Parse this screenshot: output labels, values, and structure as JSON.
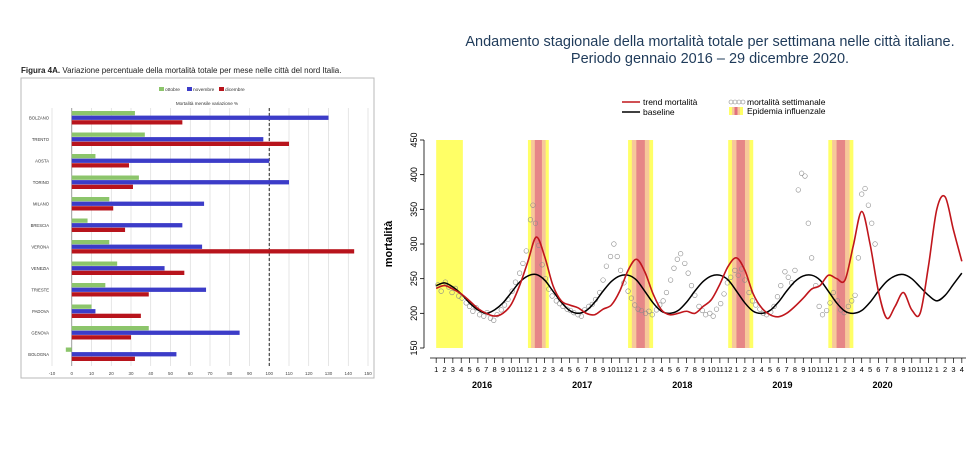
{
  "left_figure": {
    "caption_label": "Figura 4A.",
    "caption_text": "Variazione percentuale della mortalità totale per mese nelle città del nord Italia."
  },
  "right_figure": {
    "title_line1": "Andamento stagionale della mortalità totale per settimana nelle città italiane.",
    "title_line2": "Periodo gennaio 2016 – 29 dicembre 2020."
  },
  "chart_data": [
    {
      "type": "bar",
      "orientation": "horizontal",
      "title": "Mortalità mensile variazione %",
      "categories": [
        "BOLZANO",
        "TRENTO",
        "AOSTA",
        "TORINO",
        "MILANO",
        "BRESCIA",
        "VERONA",
        "VENEZIA",
        "TRIESTE",
        "PADOVA",
        "GENOVA",
        "BOLOGNA"
      ],
      "series": [
        {
          "name": "ottobre",
          "color": "#8cc56b",
          "values": [
            32,
            37,
            12,
            34,
            19,
            8,
            19,
            23,
            17,
            10,
            39,
            -3
          ]
        },
        {
          "name": "novembre",
          "color": "#3c3cc8",
          "values": [
            130,
            97,
            100,
            110,
            67,
            56,
            66,
            47,
            68,
            12,
            85,
            53
          ]
        },
        {
          "name": "dicembre",
          "color": "#b8141c",
          "values": [
            56,
            110,
            29,
            31,
            21,
            27,
            143,
            57,
            39,
            35,
            30,
            32
          ]
        }
      ],
      "xlim": [
        -10,
        150
      ],
      "xticks": [
        -10,
        0,
        10,
        20,
        30,
        40,
        50,
        60,
        70,
        80,
        90,
        100,
        110,
        120,
        130,
        140,
        150
      ],
      "reference_line": 100,
      "legend_position": "top"
    },
    {
      "type": "line",
      "ylabel": "mortalità",
      "ylim": [
        150,
        450
      ],
      "yticks": [
        150,
        200,
        250,
        300,
        350,
        400,
        450
      ],
      "years": [
        "2016",
        "2017",
        "2018",
        "2019",
        "2020"
      ],
      "month_ticks": [
        "1",
        "2",
        "3",
        "4",
        "5",
        "6",
        "7",
        "8",
        "9",
        "10",
        "11",
        "12"
      ],
      "legend": {
        "trend": "trend mortalità",
        "baseline": "baseline",
        "weekly": "mortalità settimanale",
        "epidemic": "Epidemia influenzale"
      },
      "colors": {
        "trend": "#c0161c",
        "baseline": "#000000",
        "weekly": "#8a8a8a",
        "epidemic_outer": "#ffff66",
        "epidemic_mid": "#f7c89a",
        "epidemic_inner": "#e07080"
      },
      "epidemic_periods": [
        {
          "year": "2016",
          "start": 1,
          "end": 4.2
        },
        {
          "year": "2017",
          "start": 12.0,
          "end": 14.5
        },
        {
          "year": "2018",
          "start": 24.0,
          "end": 27.0
        },
        {
          "year": "2019",
          "start": 36.0,
          "end": 39.0
        },
        {
          "year": "2020",
          "start": 48.0,
          "end": 51.0
        }
      ],
      "trend": [
        [
          1,
          236
        ],
        [
          2,
          240
        ],
        [
          3,
          235
        ],
        [
          4,
          228
        ],
        [
          5,
          218
        ],
        [
          6,
          207
        ],
        [
          7,
          200
        ],
        [
          8,
          196
        ],
        [
          9,
          200
        ],
        [
          10,
          213
        ],
        [
          11,
          240
        ],
        [
          12,
          275
        ],
        [
          13,
          310
        ],
        [
          14,
          282
        ],
        [
          15,
          240
        ],
        [
          16,
          218
        ],
        [
          17,
          212
        ],
        [
          18,
          208
        ],
        [
          19,
          200
        ],
        [
          20,
          198
        ],
        [
          21,
          206
        ],
        [
          22,
          212
        ],
        [
          23,
          232
        ],
        [
          24,
          262
        ],
        [
          25,
          278
        ],
        [
          26,
          260
        ],
        [
          27,
          228
        ],
        [
          28,
          205
        ],
        [
          29,
          198
        ],
        [
          30,
          200
        ],
        [
          31,
          203
        ],
        [
          32,
          200
        ],
        [
          33,
          210
        ],
        [
          34,
          220
        ],
        [
          35,
          242
        ],
        [
          36,
          268
        ],
        [
          37,
          280
        ],
        [
          38,
          262
        ],
        [
          39,
          228
        ],
        [
          40,
          208
        ],
        [
          41,
          198
        ],
        [
          42,
          195
        ],
        [
          43,
          200
        ],
        [
          44,
          210
        ],
        [
          45,
          222
        ],
        [
          46,
          235
        ],
        [
          47,
          240
        ],
        [
          48,
          255
        ],
        [
          49,
          250
        ],
        [
          50,
          248
        ],
        [
          51,
          298
        ],
        [
          52,
          347
        ],
        [
          53,
          300
        ],
        [
          54,
          232
        ],
        [
          55,
          193
        ],
        [
          56,
          210
        ],
        [
          57,
          230
        ],
        [
          58,
          205
        ],
        [
          59,
          200
        ],
        [
          60,
          268
        ],
        [
          61,
          350
        ],
        [
          62,
          368
        ],
        [
          63,
          320
        ],
        [
          64,
          275
        ]
      ],
      "baseline": [
        [
          1,
          240
        ],
        [
          2,
          244
        ],
        [
          3,
          238
        ],
        [
          4,
          228
        ],
        [
          5,
          215
        ],
        [
          6,
          205
        ],
        [
          7,
          200
        ],
        [
          8,
          205
        ],
        [
          9,
          215
        ],
        [
          10,
          230
        ],
        [
          11,
          245
        ],
        [
          12,
          254
        ],
        [
          13,
          256
        ],
        [
          14,
          248
        ],
        [
          15,
          232
        ],
        [
          16,
          216
        ],
        [
          17,
          204
        ],
        [
          18,
          200
        ],
        [
          19,
          204
        ],
        [
          20,
          216
        ],
        [
          21,
          232
        ],
        [
          22,
          246
        ],
        [
          23,
          254
        ],
        [
          24,
          255
        ],
        [
          25,
          248
        ],
        [
          26,
          232
        ],
        [
          27,
          215
        ],
        [
          28,
          203
        ],
        [
          29,
          200
        ],
        [
          30,
          204
        ],
        [
          31,
          216
        ],
        [
          32,
          232
        ],
        [
          33,
          246
        ],
        [
          34,
          254
        ],
        [
          35,
          255
        ],
        [
          36,
          248
        ],
        [
          37,
          232
        ],
        [
          38,
          215
        ],
        [
          39,
          203
        ],
        [
          40,
          200
        ],
        [
          41,
          204
        ],
        [
          42,
          216
        ],
        [
          43,
          232
        ],
        [
          44,
          246
        ],
        [
          45,
          254
        ],
        [
          46,
          255
        ],
        [
          47,
          248
        ],
        [
          48,
          232
        ],
        [
          49,
          215
        ],
        [
          50,
          203
        ],
        [
          51,
          200
        ],
        [
          52,
          204
        ],
        [
          53,
          216
        ],
        [
          54,
          232
        ],
        [
          55,
          246
        ],
        [
          56,
          254
        ],
        [
          57,
          256
        ],
        [
          58,
          250
        ],
        [
          59,
          238
        ],
        [
          60,
          226
        ],
        [
          61,
          218
        ],
        [
          62,
          226
        ],
        [
          63,
          242
        ],
        [
          64,
          258
        ]
      ],
      "weekly_points": [
        [
          1.2,
          241
        ],
        [
          1.6,
          232
        ],
        [
          2.1,
          245
        ],
        [
          2.5,
          238
        ],
        [
          2.9,
          230
        ],
        [
          3.3,
          236
        ],
        [
          3.7,
          225
        ],
        [
          4.1,
          222
        ],
        [
          4.6,
          215
        ],
        [
          5.0,
          210
        ],
        [
          5.4,
          203
        ],
        [
          5.8,
          208
        ],
        [
          6.2,
          198
        ],
        [
          6.7,
          196
        ],
        [
          7.1,
          201
        ],
        [
          7.5,
          193
        ],
        [
          7.9,
          190
        ],
        [
          8.3,
          198
        ],
        [
          8.8,
          205
        ],
        [
          9.2,
          212
        ],
        [
          9.6,
          220
        ],
        [
          10.1,
          232
        ],
        [
          10.5,
          245
        ],
        [
          11.0,
          258
        ],
        [
          11.4,
          272
        ],
        [
          11.8,
          290
        ],
        [
          12.3,
          335
        ],
        [
          12.6,
          356
        ],
        [
          12.9,
          330
        ],
        [
          13.3,
          298
        ],
        [
          13.7,
          270
        ],
        [
          14.1,
          250
        ],
        [
          14.5,
          235
        ],
        [
          14.9,
          225
        ],
        [
          15.4,
          218
        ],
        [
          15.8,
          214
        ],
        [
          16.2,
          210
        ],
        [
          16.7,
          206
        ],
        [
          17.1,
          204
        ],
        [
          17.5,
          201
        ],
        [
          18.0,
          198
        ],
        [
          18.4,
          196
        ],
        [
          18.8,
          205
        ],
        [
          19.3,
          210
        ],
        [
          19.7,
          213
        ],
        [
          20.1,
          220
        ],
        [
          20.6,
          230
        ],
        [
          21.0,
          248
        ],
        [
          21.4,
          268
        ],
        [
          21.9,
          282
        ],
        [
          22.3,
          300
        ],
        [
          22.7,
          282
        ],
        [
          23.1,
          262
        ],
        [
          23.5,
          244
        ],
        [
          24.0,
          232
        ],
        [
          24.4,
          222
        ],
        [
          24.8,
          212
        ],
        [
          25.2,
          206
        ],
        [
          25.6,
          204
        ],
        [
          26.1,
          200
        ],
        [
          26.5,
          203
        ],
        [
          26.9,
          198
        ],
        [
          27.4,
          205
        ],
        [
          27.8,
          212
        ],
        [
          28.2,
          218
        ],
        [
          28.6,
          230
        ],
        [
          29.1,
          248
        ],
        [
          29.5,
          265
        ],
        [
          29.9,
          278
        ],
        [
          30.3,
          286
        ],
        [
          30.8,
          272
        ],
        [
          31.2,
          258
        ],
        [
          31.6,
          240
        ],
        [
          32.0,
          226
        ],
        [
          32.5,
          210
        ],
        [
          32.9,
          204
        ],
        [
          33.3,
          198
        ],
        [
          33.8,
          200
        ],
        [
          34.2,
          196
        ],
        [
          34.6,
          206
        ],
        [
          35.1,
          214
        ],
        [
          35.5,
          228
        ],
        [
          35.9,
          244
        ],
        [
          36.3,
          252
        ],
        [
          36.8,
          262
        ],
        [
          37.2,
          255
        ],
        [
          37.6,
          264
        ],
        [
          38.0,
          248
        ],
        [
          38.5,
          230
        ],
        [
          38.9,
          218
        ],
        [
          39.3,
          212
        ],
        [
          39.8,
          206
        ],
        [
          40.2,
          200
        ],
        [
          40.6,
          198
        ],
        [
          41.1,
          202
        ],
        [
          41.5,
          210
        ],
        [
          41.9,
          224
        ],
        [
          42.3,
          240
        ],
        [
          42.8,
          260
        ],
        [
          43.2,
          252
        ],
        [
          43.6,
          244
        ],
        [
          44.0,
          262
        ],
        [
          44.4,
          378
        ],
        [
          44.8,
          402
        ],
        [
          45.2,
          398
        ],
        [
          45.6,
          330
        ],
        [
          46.0,
          280
        ],
        [
          46.5,
          240
        ],
        [
          46.9,
          210
        ],
        [
          47.3,
          198
        ],
        [
          47.8,
          204
        ],
        [
          48.2,
          215
        ],
        [
          48.6,
          230
        ],
        [
          49.1,
          218
        ],
        [
          49.5,
          205
        ],
        [
          49.9,
          201
        ],
        [
          50.4,
          210
        ],
        [
          50.8,
          218
        ],
        [
          51.2,
          226
        ],
        [
          51.6,
          280
        ],
        [
          52.0,
          372
        ],
        [
          52.4,
          380
        ],
        [
          52.8,
          356
        ],
        [
          53.2,
          330
        ],
        [
          53.6,
          300
        ]
      ]
    }
  ]
}
